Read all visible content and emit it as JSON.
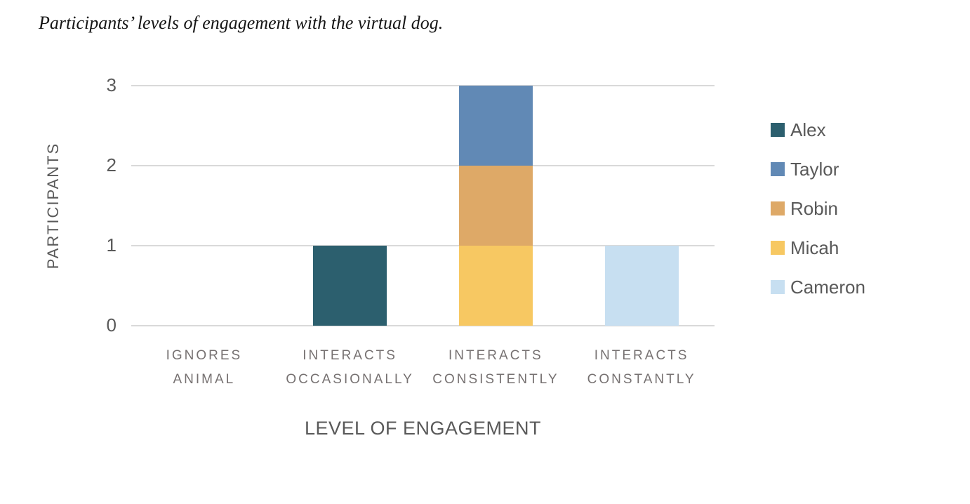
{
  "title": "Participants’ levels of engagement with the virtual dog.",
  "chart_data": {
    "type": "bar",
    "stacked": true,
    "title": "Participants’ levels of engagement with the virtual dog.",
    "xlabel": "LEVEL OF ENGAGEMENT",
    "ylabel": "PARTICIPANTS",
    "ylim": [
      0,
      3
    ],
    "yticks": [
      0,
      1,
      2,
      3
    ],
    "grid": "horizontal",
    "legend_position": "right",
    "categories": [
      "IGNORES ANIMAL",
      "INTERACTS OCCASIONALLY",
      "INTERACTS CONSISTENTLY",
      "INTERACTS CONSTANTLY"
    ],
    "category_lines": [
      [
        "IGNORES",
        "ANIMAL"
      ],
      [
        "INTERACTS",
        "OCCASIONALLY"
      ],
      [
        "INTERACTS",
        "CONSISTENTLY"
      ],
      [
        "INTERACTS",
        "CONSTANTLY"
      ]
    ],
    "series": [
      {
        "name": "Alex",
        "color": "#2C5F6E",
        "values": [
          0,
          1,
          0,
          0
        ]
      },
      {
        "name": "Taylor",
        "color": "#6189B5",
        "values": [
          0,
          0,
          1,
          0
        ]
      },
      {
        "name": "Robin",
        "color": "#DEA967",
        "values": [
          0,
          0,
          1,
          0
        ]
      },
      {
        "name": "Micah",
        "color": "#F7C862",
        "values": [
          0,
          0,
          1,
          0
        ]
      },
      {
        "name": "Cameron",
        "color": "#C7DFF1",
        "values": [
          0,
          0,
          0,
          1
        ]
      }
    ],
    "stack_order_bottom_to_top": [
      "Cameron",
      "Micah",
      "Robin",
      "Taylor",
      "Alex"
    ],
    "colors": {
      "gridline": "#D9D9D9",
      "tick_text": "#595959",
      "category_text": "#767171",
      "axis_title_text": "#595959",
      "legend_text": "#595959",
      "title_text": "#151515",
      "background": "#FFFFFF"
    }
  }
}
